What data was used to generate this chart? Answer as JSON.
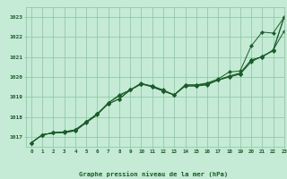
{
  "title": "Graphe pression niveau de la mer (hPa)",
  "xlabel_hours": [
    0,
    1,
    2,
    3,
    4,
    5,
    6,
    7,
    8,
    9,
    10,
    11,
    12,
    13,
    14,
    15,
    16,
    17,
    18,
    19,
    20,
    21,
    22,
    23
  ],
  "ylim": [
    1016.5,
    1023.5
  ],
  "xlim": [
    -0.5,
    23
  ],
  "yticks": [
    1017,
    1018,
    1019,
    1020,
    1021,
    1022,
    1023
  ],
  "bg_color": "#c5ead5",
  "grid_color": "#88c4a0",
  "line_color": "#1a5c2a",
  "lines": [
    [
      1016.7,
      1017.1,
      1017.2,
      1017.2,
      1017.3,
      1017.7,
      1018.1,
      1018.7,
      1019.1,
      1019.35,
      1019.65,
      1019.55,
      1019.35,
      1019.1,
      1019.55,
      1019.55,
      1019.6,
      1019.85,
      1020.0,
      1020.15,
      1020.75,
      1021.05,
      1021.3,
      1023.0
    ],
    [
      1016.7,
      1017.1,
      1017.2,
      1017.25,
      1017.3,
      1017.75,
      1018.15,
      1018.7,
      1019.05,
      1019.35,
      1019.65,
      1019.55,
      1019.3,
      1019.1,
      1019.55,
      1019.55,
      1019.65,
      1019.85,
      1020.05,
      1020.2,
      1020.85,
      1021.0,
      1021.35,
      1023.0
    ],
    [
      1016.7,
      1017.1,
      1017.2,
      1017.25,
      1017.35,
      1017.75,
      1018.15,
      1018.65,
      1018.9,
      1019.35,
      1019.7,
      1019.5,
      1019.3,
      1019.1,
      1019.6,
      1019.6,
      1019.65,
      1019.85,
      1020.0,
      1020.15,
      1020.85,
      1021.0,
      1021.35,
      1022.3
    ],
    [
      1016.7,
      1017.1,
      1017.2,
      1017.25,
      1017.35,
      1017.75,
      1018.15,
      1018.65,
      1018.9,
      1019.35,
      1019.65,
      1019.5,
      1019.3,
      1019.1,
      1019.6,
      1019.6,
      1019.7,
      1019.9,
      1020.25,
      1020.3,
      1021.55,
      1022.25,
      1022.2,
      1023.0
    ]
  ]
}
